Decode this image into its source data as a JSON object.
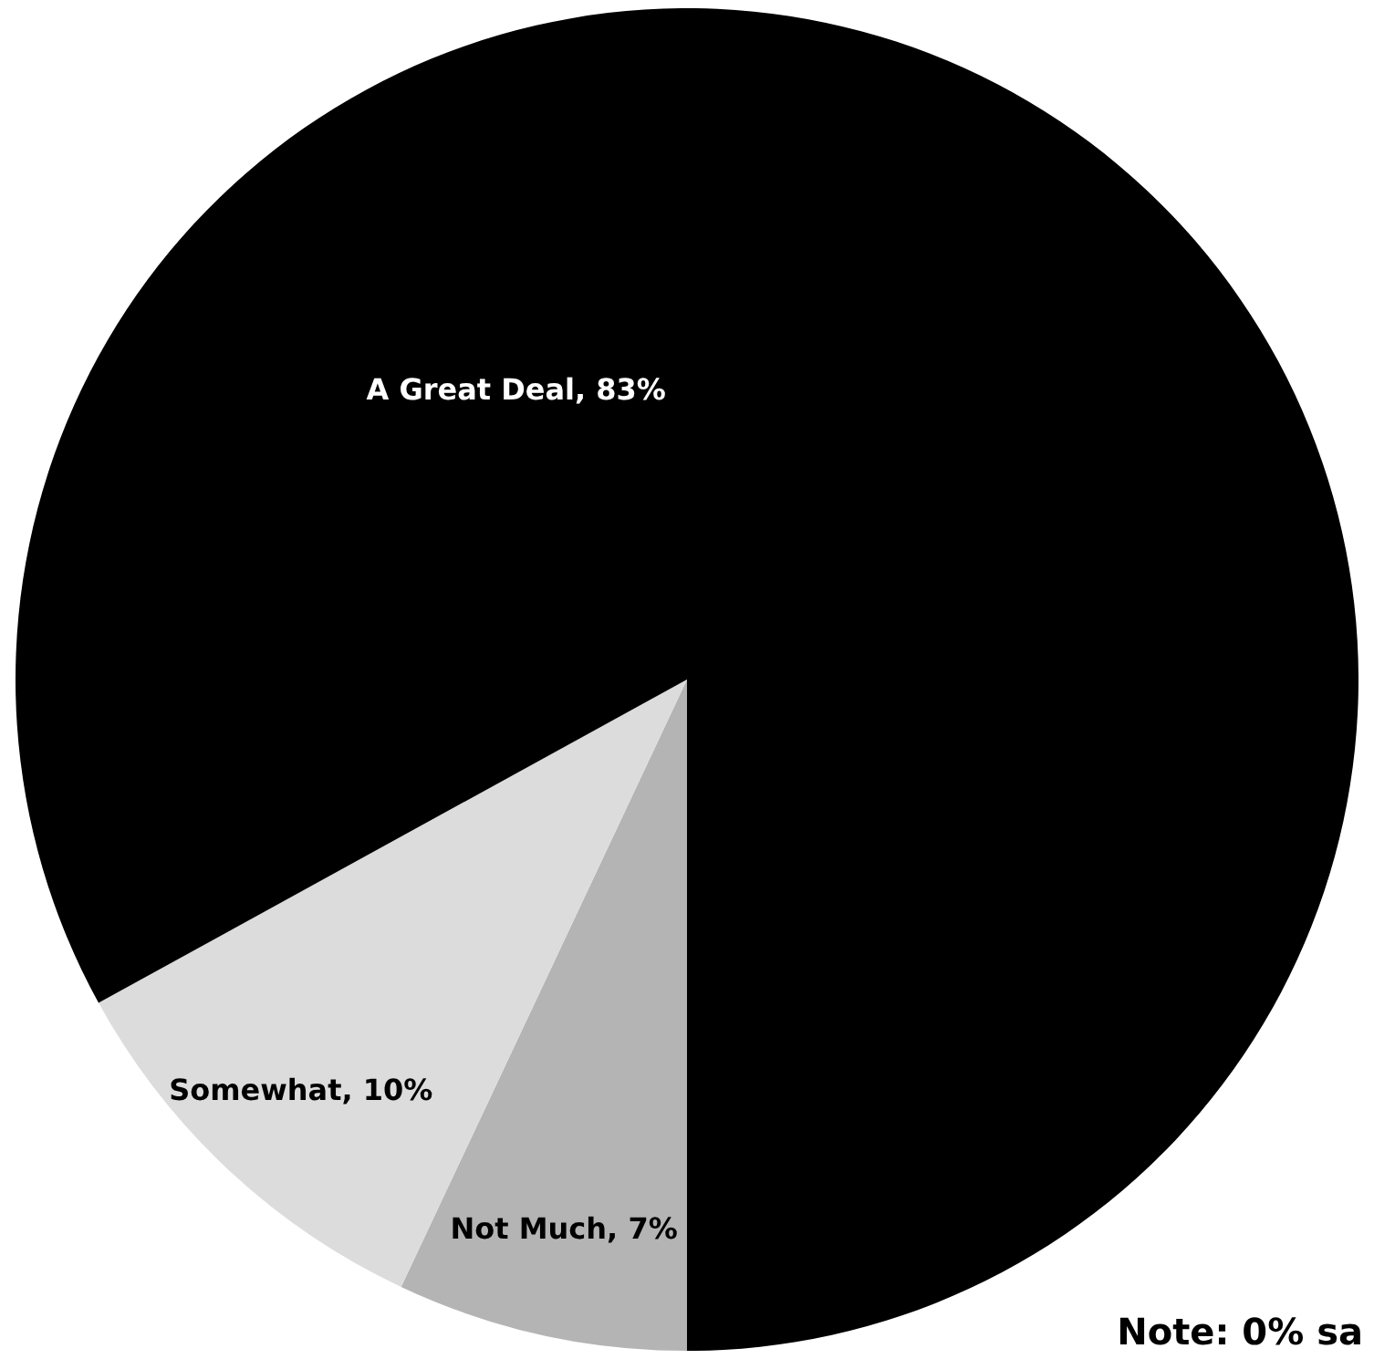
{
  "chart_data": {
    "type": "pie",
    "categories": [
      "Not Much",
      "Somewhat",
      "A Great Deal"
    ],
    "values": [
      7,
      10,
      83
    ],
    "colors": [
      "#b4b4b4",
      "#dcdcdc",
      "#000000"
    ],
    "value_labels": [
      "7%",
      "10%",
      "83%"
    ],
    "annotations": [
      "Note:  0% sa"
    ]
  }
}
